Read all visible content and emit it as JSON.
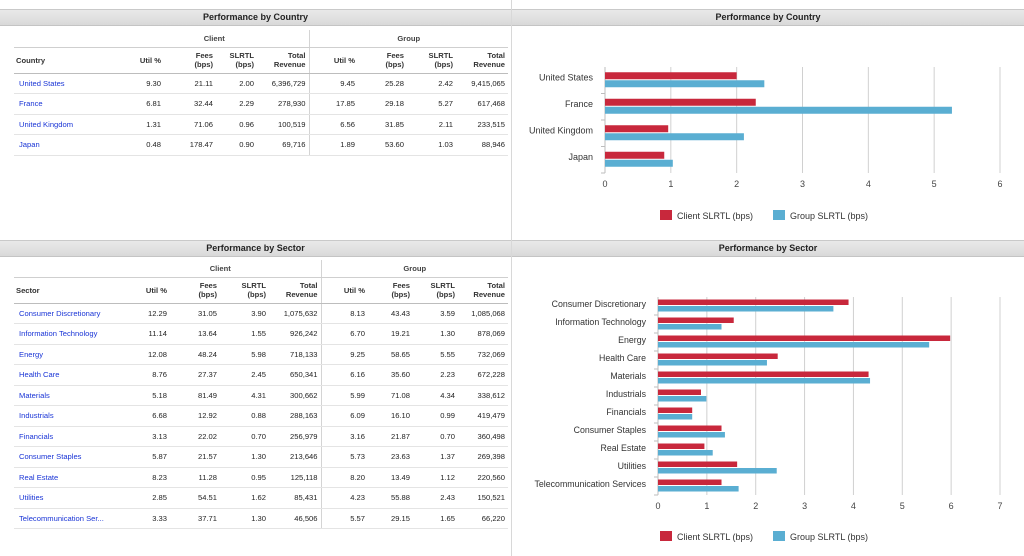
{
  "country_table": {
    "title": "Performance by Country",
    "group_client": "Client",
    "group_group": "Group",
    "col_name": "Country",
    "columns": {
      "util": "Util %",
      "fees1": "Fees",
      "fees2": "(bps)",
      "slrtl1": "SLRTL",
      "slrtl2": "(bps)",
      "rev1": "Total",
      "rev2": "Revenue"
    },
    "rows": [
      {
        "name": "United States",
        "c_util": "9.30",
        "c_fees": "21.11",
        "c_slrtl": "2.00",
        "c_rev": "6,396,729",
        "g_util": "9.45",
        "g_fees": "25.28",
        "g_slrtl": "2.42",
        "g_rev": "9,415,065"
      },
      {
        "name": "France",
        "c_util": "6.81",
        "c_fees": "32.44",
        "c_slrtl": "2.29",
        "c_rev": "278,930",
        "g_util": "17.85",
        "g_fees": "29.18",
        "g_slrtl": "5.27",
        "g_rev": "617,468"
      },
      {
        "name": "United Kingdom",
        "c_util": "1.31",
        "c_fees": "71.06",
        "c_slrtl": "0.96",
        "c_rev": "100,519",
        "g_util": "6.56",
        "g_fees": "31.85",
        "g_slrtl": "2.11",
        "g_rev": "233,515"
      },
      {
        "name": "Japan",
        "c_util": "0.48",
        "c_fees": "178.47",
        "c_slrtl": "0.90",
        "c_rev": "69,716",
        "g_util": "1.89",
        "g_fees": "53.60",
        "g_slrtl": "1.03",
        "g_rev": "88,946"
      }
    ]
  },
  "sector_table": {
    "title": "Performance by Sector",
    "group_client": "Client",
    "group_group": "Group",
    "col_name": "Sector",
    "columns": {
      "util": "Util %",
      "fees1": "Fees",
      "fees2": "(bps)",
      "slrtl1": "SLRTL",
      "slrtl2": "(bps)",
      "rev1": "Total",
      "rev2": "Revenue"
    },
    "rows": [
      {
        "name": "Consumer Discretionary",
        "c_util": "12.29",
        "c_fees": "31.05",
        "c_slrtl": "3.90",
        "c_rev": "1,075,632",
        "g_util": "8.13",
        "g_fees": "43.43",
        "g_slrtl": "3.59",
        "g_rev": "1,085,068"
      },
      {
        "name": "Information Technology",
        "c_util": "11.14",
        "c_fees": "13.64",
        "c_slrtl": "1.55",
        "c_rev": "926,242",
        "g_util": "6.70",
        "g_fees": "19.21",
        "g_slrtl": "1.30",
        "g_rev": "878,069"
      },
      {
        "name": "Energy",
        "c_util": "12.08",
        "c_fees": "48.24",
        "c_slrtl": "5.98",
        "c_rev": "718,133",
        "g_util": "9.25",
        "g_fees": "58.65",
        "g_slrtl": "5.55",
        "g_rev": "732,069"
      },
      {
        "name": "Health Care",
        "c_util": "8.76",
        "c_fees": "27.37",
        "c_slrtl": "2.45",
        "c_rev": "650,341",
        "g_util": "6.16",
        "g_fees": "35.60",
        "g_slrtl": "2.23",
        "g_rev": "672,228"
      },
      {
        "name": "Materials",
        "c_util": "5.18",
        "c_fees": "81.49",
        "c_slrtl": "4.31",
        "c_rev": "300,662",
        "g_util": "5.99",
        "g_fees": "71.08",
        "g_slrtl": "4.34",
        "g_rev": "338,612"
      },
      {
        "name": "Industrials",
        "c_util": "6.68",
        "c_fees": "12.92",
        "c_slrtl": "0.88",
        "c_rev": "288,163",
        "g_util": "6.09",
        "g_fees": "16.10",
        "g_slrtl": "0.99",
        "g_rev": "419,479"
      },
      {
        "name": "Financials",
        "c_util": "3.13",
        "c_fees": "22.02",
        "c_slrtl": "0.70",
        "c_rev": "256,979",
        "g_util": "3.16",
        "g_fees": "21.87",
        "g_slrtl": "0.70",
        "g_rev": "360,498"
      },
      {
        "name": "Consumer Staples",
        "c_util": "5.87",
        "c_fees": "21.57",
        "c_slrtl": "1.30",
        "c_rev": "213,646",
        "g_util": "5.73",
        "g_fees": "23.63",
        "g_slrtl": "1.37",
        "g_rev": "269,398"
      },
      {
        "name": "Real Estate",
        "c_util": "8.23",
        "c_fees": "11.28",
        "c_slrtl": "0.95",
        "c_rev": "125,118",
        "g_util": "8.20",
        "g_fees": "13.49",
        "g_slrtl": "1.12",
        "g_rev": "220,560"
      },
      {
        "name": "Utilities",
        "c_util": "2.85",
        "c_fees": "54.51",
        "c_slrtl": "1.62",
        "c_rev": "85,431",
        "g_util": "4.23",
        "g_fees": "55.88",
        "g_slrtl": "2.43",
        "g_rev": "150,521"
      },
      {
        "name": "Telecommunication Ser...",
        "c_util": "3.33",
        "c_fees": "37.71",
        "c_slrtl": "1.30",
        "c_rev": "46,506",
        "g_util": "5.57",
        "g_fees": "29.15",
        "g_slrtl": "1.65",
        "g_rev": "66,220"
      }
    ]
  },
  "chart_data": [
    {
      "type": "bar",
      "orientation": "horizontal",
      "title": "Performance by Country",
      "categories": [
        "United States",
        "France",
        "United Kingdom",
        "Japan"
      ],
      "series": [
        {
          "name": "Client SLRTL (bps)",
          "color": "#c8283c",
          "values": [
            2.0,
            2.29,
            0.96,
            0.9
          ]
        },
        {
          "name": "Group SLRTL (bps)",
          "color": "#5aaed2",
          "values": [
            2.42,
            5.27,
            2.11,
            1.03
          ]
        }
      ],
      "xlim": [
        0,
        6
      ],
      "xticks": [
        "0",
        "1",
        "2",
        "3",
        "4",
        "5",
        "6"
      ],
      "grid": true,
      "legend": "bottom"
    },
    {
      "type": "bar",
      "orientation": "horizontal",
      "title": "Performance by Sector",
      "categories": [
        "Consumer Discretionary",
        "Information Technology",
        "Energy",
        "Health Care",
        "Materials",
        "Industrials",
        "Financials",
        "Consumer Staples",
        "Real Estate",
        "Utilities",
        "Telecommunication Services"
      ],
      "series": [
        {
          "name": "Client SLRTL (bps)",
          "color": "#c8283c",
          "values": [
            3.9,
            1.55,
            5.98,
            2.45,
            4.31,
            0.88,
            0.7,
            1.3,
            0.95,
            1.62,
            1.3
          ]
        },
        {
          "name": "Group SLRTL (bps)",
          "color": "#5aaed2",
          "values": [
            3.59,
            1.3,
            5.55,
            2.23,
            4.34,
            0.99,
            0.7,
            1.37,
            1.12,
            2.43,
            1.65
          ]
        }
      ],
      "xlim": [
        0,
        7
      ],
      "xticks": [
        "0",
        "1",
        "2",
        "3",
        "4",
        "5",
        "6",
        "7"
      ],
      "grid": true,
      "legend": "bottom"
    }
  ]
}
